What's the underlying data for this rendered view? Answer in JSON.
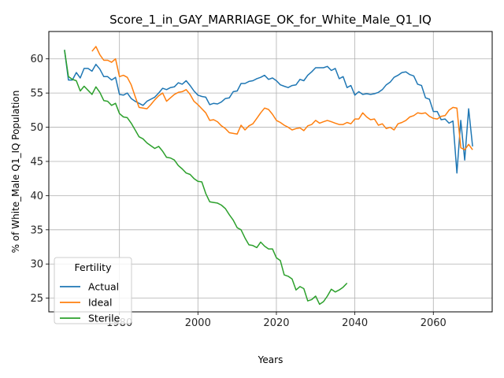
{
  "chart_data": {
    "type": "line",
    "title": "Score_1_in_GAY_MARRIAGE_OK_for_White_Male_Q1_IQ",
    "xlabel": "Years",
    "ylabel": "% of White_Male Q1_IQ Population",
    "xlim": [
      1962,
      2075
    ],
    "ylim": [
      23,
      64
    ],
    "xticks": [
      1980,
      2000,
      2020,
      2040,
      2060
    ],
    "yticks": [
      25,
      30,
      35,
      40,
      45,
      50,
      55,
      60
    ],
    "grid": true,
    "legend": {
      "title": "Fertility",
      "position": "bottom-left"
    },
    "colors": {
      "Actual": "#1f77b4",
      "Ideal": "#ff7f0e",
      "Sterile": "#2ca02c"
    },
    "series": [
      {
        "name": "Actual",
        "x": [
          1966,
          1967,
          1968,
          1969,
          1970,
          1971,
          1972,
          1973,
          1974,
          1975,
          1976,
          1977,
          1978,
          1979,
          1980,
          1981,
          1982,
          1983,
          1984,
          1985,
          1986,
          1987,
          1988,
          1989,
          1990,
          1991,
          1992,
          1993,
          1994,
          1995,
          1996,
          1997,
          1998,
          1999,
          2000,
          2001,
          2002,
          2003,
          2004,
          2005,
          2006,
          2007,
          2008,
          2009,
          2010,
          2011,
          2012,
          2013,
          2014,
          2015,
          2016,
          2017,
          2018,
          2019,
          2020,
          2021,
          2022,
          2023,
          2024,
          2025,
          2026,
          2027,
          2028,
          2029,
          2030,
          2031,
          2032,
          2033,
          2034,
          2035,
          2036,
          2037,
          2038,
          2039,
          2040,
          2041,
          2042,
          2043,
          2044,
          2045,
          2046,
          2047,
          2048,
          2049,
          2050,
          2051,
          2052,
          2053,
          2054,
          2055,
          2056,
          2057,
          2058,
          2059,
          2060,
          2061,
          2062,
          2063,
          2064,
          2065,
          2066,
          2067,
          2068,
          2069,
          2070
        ],
        "values": [
          61.3,
          56.9,
          56.9,
          58.0,
          57.2,
          58.6,
          58.6,
          58.2,
          59.2,
          58.5,
          57.4,
          57.4,
          56.9,
          57.3,
          54.8,
          54.7,
          55.0,
          54.2,
          53.8,
          53.5,
          53.2,
          53.8,
          54.1,
          54.4,
          55.0,
          55.7,
          55.5,
          55.8,
          55.9,
          56.5,
          56.3,
          56.8,
          56.1,
          55.3,
          54.7,
          54.5,
          54.4,
          53.3,
          53.5,
          53.4,
          53.7,
          54.2,
          54.3,
          55.2,
          55.3,
          56.4,
          56.4,
          56.7,
          56.8,
          57.1,
          57.3,
          57.6,
          57.0,
          57.2,
          56.8,
          56.2,
          56.0,
          55.8,
          56.1,
          56.2,
          57.0,
          56.8,
          57.6,
          58.1,
          58.7,
          58.7,
          58.7,
          58.9,
          58.3,
          58.6,
          57.1,
          57.4,
          55.8,
          56.1,
          54.7,
          55.2,
          54.8,
          54.9,
          54.8,
          54.9,
          55.1,
          55.5,
          56.2,
          56.6,
          57.3,
          57.6,
          58.0,
          58.1,
          57.7,
          57.5,
          56.3,
          56.1,
          54.3,
          54.1,
          52.3,
          52.3,
          51.1,
          51.2,
          50.6,
          50.9,
          43.3,
          51.0,
          45.2,
          52.7,
          47.2
        ]
      },
      {
        "name": "Ideal",
        "x": [
          1973,
          1974,
          1975,
          1976,
          1977,
          1978,
          1979,
          1980,
          1981,
          1982,
          1983,
          1984,
          1985,
          1986,
          1987,
          1988,
          1989,
          1990,
          1991,
          1992,
          1993,
          1994,
          1995,
          1996,
          1997,
          1998,
          1999,
          2000,
          2001,
          2002,
          2003,
          2004,
          2005,
          2006,
          2007,
          2008,
          2009,
          2010,
          2011,
          2012,
          2013,
          2014,
          2015,
          2016,
          2017,
          2018,
          2019,
          2020,
          2021,
          2022,
          2023,
          2024,
          2025,
          2026,
          2027,
          2028,
          2029,
          2030,
          2031,
          2032,
          2033,
          2034,
          2035,
          2036,
          2037,
          2038,
          2039,
          2040,
          2041,
          2042,
          2043,
          2044,
          2045,
          2046,
          2047,
          2048,
          2049,
          2050,
          2051,
          2052,
          2053,
          2054,
          2055,
          2056,
          2057,
          2058,
          2059,
          2060,
          2061,
          2062,
          2063,
          2064,
          2065,
          2066,
          2067,
          2068,
          2069,
          2070
        ],
        "values": [
          61.1,
          61.8,
          60.6,
          59.8,
          59.8,
          59.5,
          60.0,
          57.4,
          57.6,
          57.3,
          56.2,
          54.5,
          52.9,
          52.8,
          52.7,
          53.3,
          54.0,
          54.6,
          55.0,
          53.8,
          54.3,
          54.8,
          55.1,
          55.2,
          55.5,
          54.8,
          53.8,
          53.3,
          52.7,
          52.1,
          51.0,
          51.1,
          50.8,
          50.2,
          49.8,
          49.2,
          49.1,
          49.0,
          50.3,
          49.6,
          50.2,
          50.5,
          51.3,
          52.1,
          52.8,
          52.6,
          51.9,
          51.0,
          50.7,
          50.3,
          50.0,
          49.6,
          49.8,
          49.9,
          49.5,
          50.2,
          50.4,
          51.0,
          50.6,
          50.8,
          51.0,
          50.8,
          50.6,
          50.4,
          50.4,
          50.7,
          50.5,
          51.2,
          51.2,
          52.1,
          51.5,
          51.1,
          51.2,
          50.3,
          50.5,
          49.8,
          50.0,
          49.6,
          50.5,
          50.7,
          51.0,
          51.5,
          51.7,
          52.1,
          52.0,
          52.1,
          51.6,
          51.3,
          51.2,
          51.6,
          51.7,
          52.5,
          52.9,
          52.8,
          47.0,
          46.7,
          47.5,
          46.7
        ]
      },
      {
        "name": "Sterile",
        "x": [
          1966,
          1967,
          1968,
          1969,
          1970,
          1971,
          1972,
          1973,
          1974,
          1975,
          1976,
          1977,
          1978,
          1979,
          1980,
          1981,
          1982,
          1983,
          1984,
          1985,
          1986,
          1987,
          1988,
          1989,
          1990,
          1991,
          1992,
          1993,
          1994,
          1995,
          1996,
          1997,
          1998,
          1999,
          2000,
          2001,
          2002,
          2003,
          2004,
          2005,
          2006,
          2007,
          2008,
          2009,
          2010,
          2011,
          2012,
          2013,
          2014,
          2015,
          2016,
          2017,
          2018,
          2019,
          2020,
          2021,
          2022,
          2023,
          2024,
          2025,
          2026,
          2027,
          2028,
          2029,
          2030,
          2031,
          2032,
          2033,
          2034,
          2035,
          2036,
          2037,
          2038
        ],
        "values": [
          61.3,
          57.4,
          57.0,
          56.8,
          55.3,
          56.0,
          55.4,
          54.8,
          55.9,
          55.1,
          53.9,
          53.8,
          53.2,
          53.5,
          52.0,
          51.5,
          51.4,
          50.6,
          49.6,
          48.6,
          48.3,
          47.7,
          47.3,
          46.9,
          47.2,
          46.5,
          45.6,
          45.5,
          45.2,
          44.4,
          43.9,
          43.3,
          43.1,
          42.5,
          42.1,
          42.0,
          40.3,
          39.1,
          39.0,
          38.9,
          38.6,
          38.1,
          37.2,
          36.4,
          35.3,
          35.0,
          33.8,
          32.8,
          32.7,
          32.4,
          33.2,
          32.6,
          32.2,
          32.2,
          30.9,
          30.5,
          28.4,
          28.2,
          27.8,
          26.2,
          26.7,
          26.4,
          24.6,
          24.8,
          25.3,
          24.1,
          24.5,
          25.3,
          26.3,
          25.9,
          26.2,
          26.6,
          27.2
        ]
      }
    ]
  }
}
